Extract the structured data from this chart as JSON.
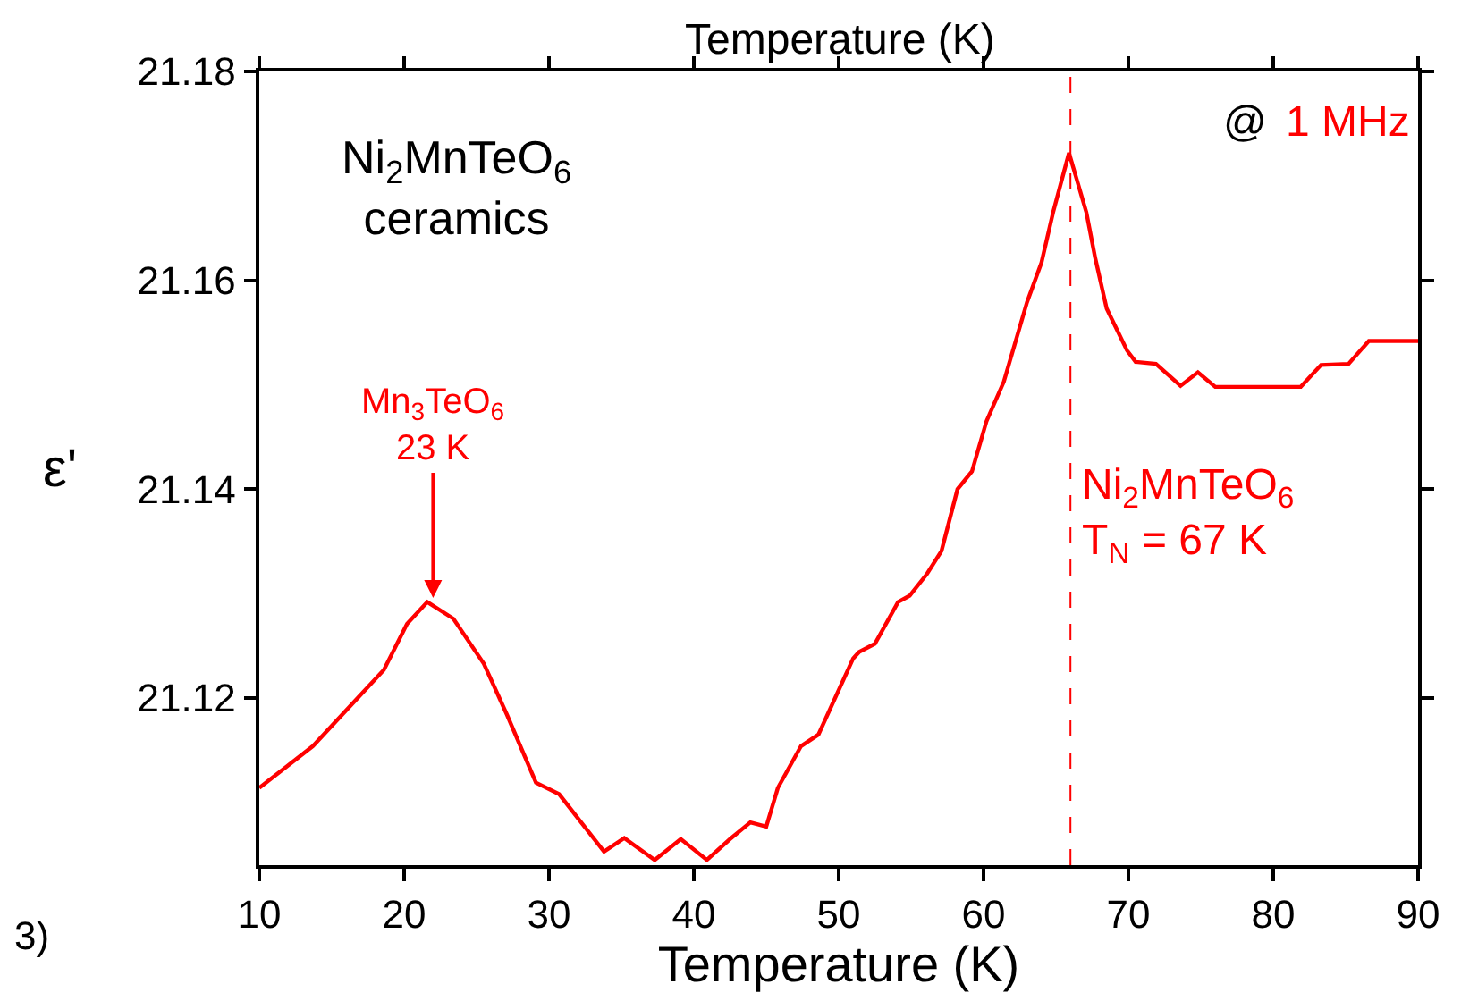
{
  "chart_data": {
    "type": "line",
    "xlabel": "Temperature (K)",
    "ylabel": "ε'",
    "xlim": [
      10,
      90
    ],
    "xticks": [
      10,
      20,
      30,
      40,
      50,
      60,
      70,
      80,
      90
    ],
    "ylim": [
      21.104,
      21.18
    ],
    "yticks": [
      21.12,
      21.14,
      21.16,
      21.18
    ],
    "legend": false,
    "marker": "none",
    "line_style": "solid",
    "series": [
      {
        "color": "#ff0000",
        "x": [
          10,
          13.7,
          18.6,
          20.2,
          21.6,
          23.4,
          25.5,
          27.1,
          29.1,
          30.7,
          33.8,
          35.2,
          37.3,
          39.1,
          40.9,
          42.5,
          43.9,
          45.0,
          45.8,
          47.4,
          48.6,
          51.0,
          51.4,
          52.5,
          54.1,
          54.9,
          56.1,
          57.1,
          58.2,
          59.2,
          60.2,
          61.4,
          63.0,
          64.0,
          64.8,
          65.9,
          67.1,
          67.7,
          68.5,
          69.9,
          70.5,
          71.9,
          73.6,
          74.8,
          76.0,
          81.9,
          83.3,
          85.2,
          86.6,
          90
        ],
        "values": [
          21.1114,
          21.1154,
          21.1227,
          21.1271,
          21.1292,
          21.1276,
          21.1233,
          21.1184,
          21.1119,
          21.1108,
          21.1053,
          21.1066,
          21.1045,
          21.1065,
          21.1045,
          21.1065,
          21.1081,
          21.1077,
          21.1114,
          21.1154,
          21.1165,
          21.1238,
          21.1244,
          21.1252,
          21.1292,
          21.1298,
          21.1319,
          21.1341,
          21.14,
          21.1417,
          21.1465,
          21.1503,
          21.1579,
          21.1617,
          21.1665,
          21.1722,
          21.1665,
          21.1622,
          21.1573,
          21.1533,
          21.1522,
          21.152,
          21.1499,
          21.1512,
          21.1498,
          21.1498,
          21.1519,
          21.152,
          21.1542,
          21.1542
        ]
      }
    ],
    "ref_lines": [
      {
        "axis": "x",
        "value": 66,
        "color": "#ff0000",
        "line_style": "dashed"
      }
    ],
    "annotations": [
      {
        "text": "Mn$_{3}$TeO$_{6}$\n23 K",
        "x": 22,
        "y": 21.1296
      },
      "Ni$_{2}$MnTeO$_{6}$\nceramics",
      "Ni$_{2}$MnTeO$_{6}$\nT$_{N}$ = 67 K",
      "@",
      "1 MHz",
      "Temperature (K)",
      "3)"
    ]
  }
}
